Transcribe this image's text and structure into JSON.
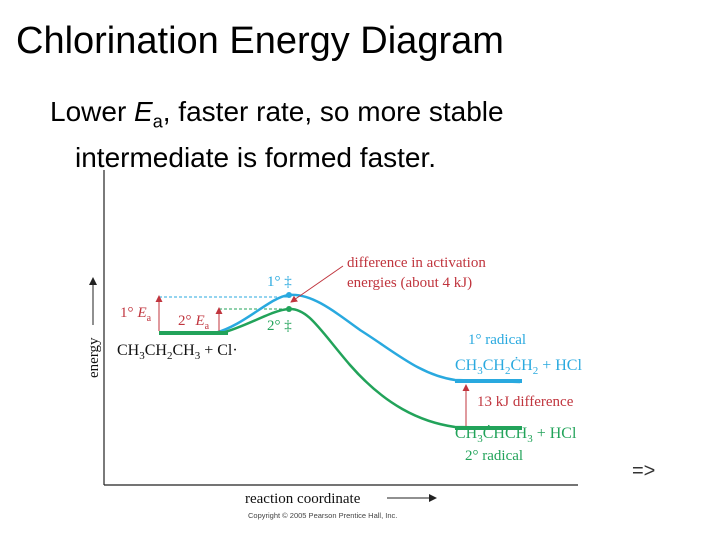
{
  "slide": {
    "title": "Chlorination Energy Diagram",
    "bullet_prefix": "Lower ",
    "bullet_E": "E",
    "bullet_sub": "a",
    "bullet_line1_rest": ", faster rate, so more stable",
    "bullet_line2": "intermediate is formed faster.",
    "next_arrow": "=>"
  },
  "diagram": {
    "y_axis_label": "energy",
    "x_axis_label": "reaction coordinate",
    "copyright": "Copyright © 2005 Pearson Prentice Hall, Inc.",
    "reactants": "CH3CH2CH3 + Cl·",
    "ts_primary": "1° ‡",
    "ts_secondary": "2° ‡",
    "ea_primary_prefix": "1°",
    "ea_secondary_prefix": "2°",
    "ea_E": "E",
    "ea_sub": "a",
    "activation_diff_line1": "difference in activation",
    "activation_diff_line2": "energies (about 4 kJ)",
    "primary_radical_label": "1° radical",
    "primary_radical_formula": "CH3CH2ĊH2 + HCl",
    "difference_label": "13 kJ difference",
    "secondary_radical_formula": "CH3ĊHCH3 + HCl",
    "secondary_radical_label": "2° radical",
    "colors": {
      "primary_curve": "#29a9df",
      "secondary_curve": "#22a35a",
      "annotation": "#c0353e",
      "axis": "#222222"
    }
  }
}
